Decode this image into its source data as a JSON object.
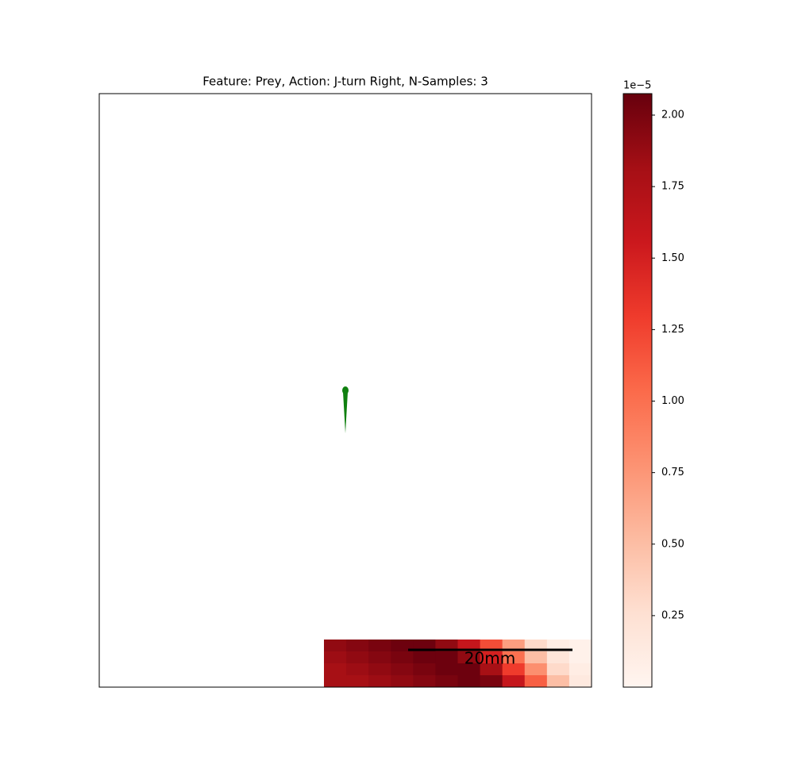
{
  "chart_data": {
    "type": "heatmap",
    "title": "Feature: Prey, Action: J-turn Right, N-Samples: 3",
    "cmap": "Reds",
    "clim": [
      0,
      2.075
    ],
    "cticks": [
      0.25,
      0.5,
      0.75,
      1.0,
      1.25,
      1.5,
      1.75,
      2.0
    ],
    "cticks_labels": [
      "0.25",
      "0.50",
      "0.75",
      "1.00",
      "1.25",
      "1.50",
      "1.75",
      "2.00"
    ],
    "colorbar_offset": "1e−5",
    "scale_bar_label": "20mm",
    "values": [
      [
        1.9,
        1.95,
        2.0,
        2.05,
        2.05,
        1.9,
        1.6,
        1.2,
        0.7,
        0.3,
        0.1,
        0.05
      ],
      [
        1.85,
        1.9,
        1.95,
        2.0,
        2.05,
        2.05,
        1.9,
        1.5,
        1.0,
        0.5,
        0.2,
        0.05
      ],
      [
        1.8,
        1.85,
        1.9,
        1.95,
        2.0,
        2.05,
        2.05,
        1.8,
        1.3,
        0.8,
        0.3,
        0.1
      ],
      [
        1.8,
        1.8,
        1.85,
        1.9,
        1.95,
        2.0,
        2.05,
        2.0,
        1.6,
        1.1,
        0.5,
        0.15
      ]
    ]
  }
}
